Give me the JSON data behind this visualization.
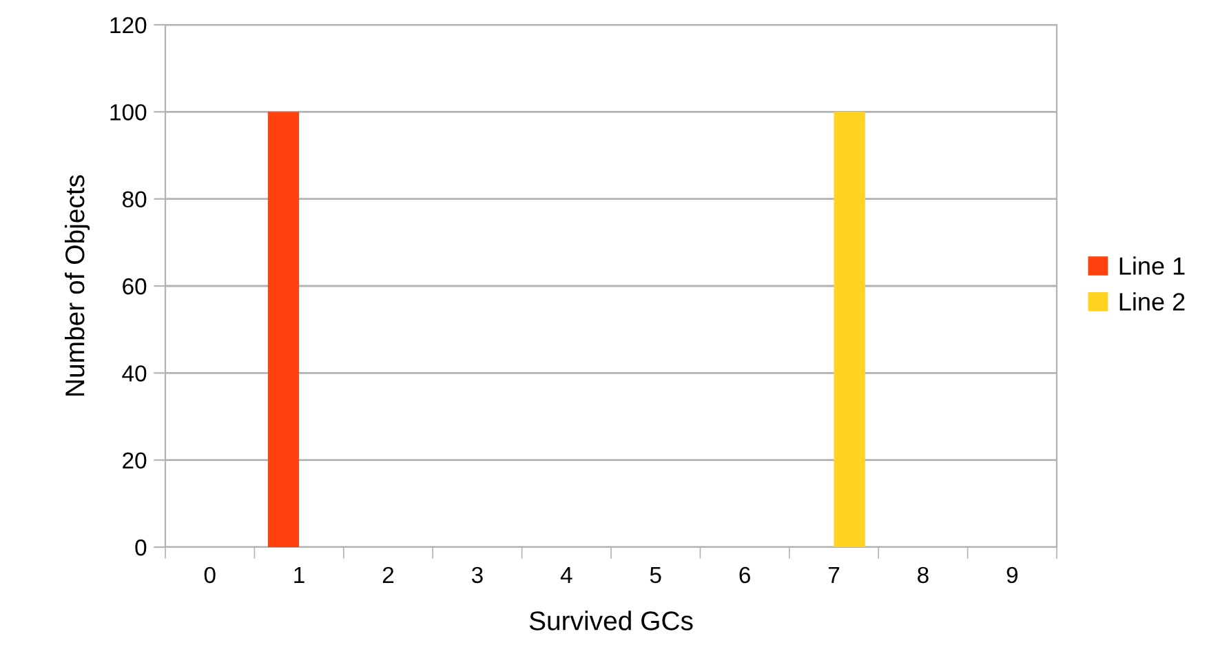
{
  "chart_data": {
    "type": "bar",
    "xlabel": "Survived GCs",
    "ylabel": "Number of Objects",
    "categories": [
      "0",
      "1",
      "2",
      "3",
      "4",
      "5",
      "6",
      "7",
      "8",
      "9"
    ],
    "series": [
      {
        "name": "Line 1",
        "color": "#ff420e",
        "values": [
          0,
          100,
          0,
          0,
          0,
          0,
          0,
          0,
          0,
          0
        ]
      },
      {
        "name": "Line 2",
        "color": "#ffd320",
        "values": [
          0,
          0,
          0,
          0,
          0,
          0,
          0,
          100,
          0,
          0
        ]
      }
    ],
    "ylim": [
      0,
      120
    ],
    "yticks": [
      0,
      20,
      40,
      60,
      80,
      100,
      120
    ],
    "grid": "y",
    "legend": "right"
  }
}
